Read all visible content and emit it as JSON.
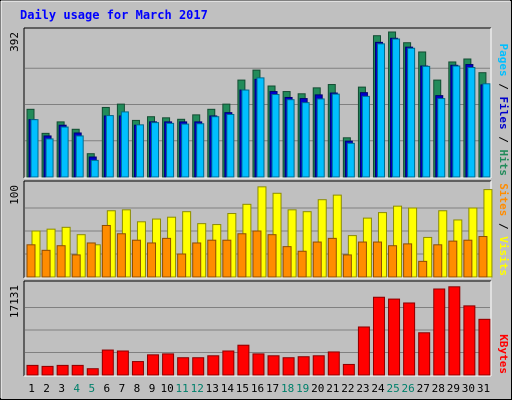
{
  "chart_data": {
    "type": "bar",
    "title": "Daily usage for March 2017",
    "categories": [
      "1",
      "2",
      "3",
      "4",
      "5",
      "6",
      "7",
      "8",
      "9",
      "10",
      "11",
      "12",
      "13",
      "14",
      "15",
      "16",
      "17",
      "18",
      "19",
      "20",
      "21",
      "22",
      "23",
      "24",
      "25",
      "26",
      "27",
      "28",
      "29",
      "30",
      "31"
    ],
    "weekend_days": [
      "4",
      "5",
      "11",
      "12",
      "18",
      "19",
      "25",
      "26"
    ],
    "panels": [
      {
        "name": "hits-files-pages",
        "max_label": "392",
        "ymax": 392,
        "series": [
          {
            "name": "Hits",
            "color": "#228b5a",
            "values": [
              183,
              118,
              149,
              129,
              63,
              188,
              197,
              153,
              163,
              160,
              156,
              168,
              183,
              197,
              262,
              289,
              246,
              231,
              225,
              241,
              250,
              106,
              243,
              382,
              392,
              363,
              338,
              262,
              311,
              319,
              282
            ]
          },
          {
            "name": "Files",
            "color": "#0000cc",
            "values": [
              155,
              111,
              140,
              119,
              54,
              165,
              165,
              140,
              149,
              149,
              149,
              149,
              165,
              174,
              235,
              264,
              231,
              215,
              212,
              222,
              227,
              97,
              228,
              364,
              375,
              351,
              300,
              220,
              302,
              304,
              249
            ]
          },
          {
            "name": "Pages",
            "color": "#00bfff",
            "values": [
              155,
              103,
              135,
              111,
              45,
              166,
              176,
              141,
              147,
              145,
              143,
              144,
              163,
              169,
              235,
              268,
              223,
              209,
              201,
              211,
              224,
              91,
              218,
              360,
              373,
              348,
              299,
              212,
              300,
              296,
              252
            ]
          }
        ]
      },
      {
        "name": "visits-sites",
        "max_label": "100",
        "ymax": 100,
        "series": [
          {
            "name": "Visits",
            "color": "#ffff00",
            "values": [
              50,
              52,
              54,
              46,
              35,
              72,
              73,
              60,
              63,
              65,
              71,
              58,
              57,
              69,
              79,
              98,
              91,
              73,
              71,
              84,
              89,
              45,
              64,
              70,
              77,
              75,
              43,
              72,
              62,
              75,
              95
            ]
          },
          {
            "name": "Sites",
            "color": "#ff8c00",
            "values": [
              35,
              29,
              34,
              24,
              37,
              56,
              47,
              40,
              37,
              42,
              25,
              37,
              40,
              40,
              47,
              50,
              46,
              33,
              28,
              38,
              42,
              24,
              38,
              38,
              34,
              36,
              17,
              35,
              39,
              40,
              44
            ]
          }
        ]
      },
      {
        "name": "kbytes",
        "max_label": "17131",
        "ymax": 17131,
        "series": [
          {
            "name": "KBytes",
            "color": "#ff0000",
            "values": [
              1830,
              1640,
              1830,
              1830,
              1200,
              4750,
              4570,
              2560,
              3840,
              4020,
              3290,
              3290,
              3660,
              4570,
              5670,
              4020,
              3660,
              3290,
              3480,
              3660,
              4390,
              2010,
              9140,
              14800,
              14450,
              13710,
              8040,
              16370,
              16790,
              13160,
              10600
            ]
          }
        ]
      }
    ],
    "legend": [
      {
        "text": "Pages",
        "color": "#00bfff"
      },
      {
        "text": " / ",
        "color": "#000000"
      },
      {
        "text": "Files",
        "color": "#0000cc"
      },
      {
        "text": " / ",
        "color": "#000000"
      },
      {
        "text": "Hits",
        "color": "#228b5a"
      },
      {
        "text": "Sites",
        "color": "#ff8c00"
      },
      {
        "text": " / ",
        "color": "#000000"
      },
      {
        "text": "Visits",
        "color": "#ffff00"
      },
      {
        "text": "KBytes",
        "color": "#ff0000"
      }
    ],
    "colors": {
      "background": "#c0c0c0",
      "title": "#0000ff",
      "weekday_label": "#000000",
      "weekend_label": "#00806b",
      "gridline": "#808080"
    }
  }
}
